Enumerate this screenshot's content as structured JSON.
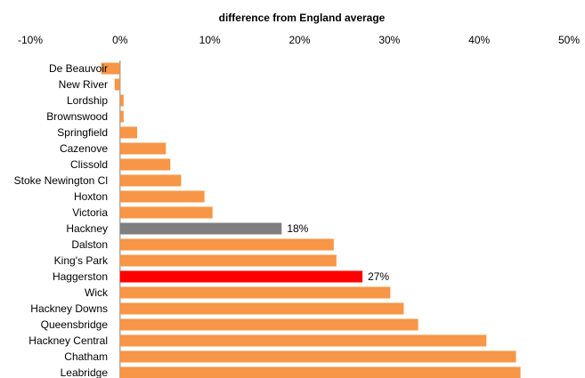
{
  "chart_data": {
    "type": "bar",
    "orientation": "horizontal",
    "title": "difference from England  average",
    "xlim": [
      -0.1,
      0.5
    ],
    "x_ticks": [
      -0.1,
      0,
      0.1,
      0.2,
      0.3,
      0.4,
      0.5
    ],
    "x_tick_labels": [
      "-10%",
      "0%",
      "10%",
      "20%",
      "30%",
      "40%",
      "50%"
    ],
    "axis_position": "top",
    "grid": false,
    "legend": "none",
    "categories": [
      "De Beauvoir",
      "New River",
      "Lordship",
      "Brownswood",
      "Springfield",
      "Cazenove",
      "Clissold",
      "Stoke Newington Cl",
      "Hoxton",
      "Victoria",
      "Hackney",
      "Dalston",
      "King's Park",
      "Haggerston",
      "Wick",
      "Hackney Downs",
      "Queensbridge",
      "Hackney Central",
      "Chatham",
      "Leabridge"
    ],
    "values": [
      -0.021,
      -0.006,
      0.004,
      0.004,
      0.019,
      0.051,
      0.056,
      0.068,
      0.094,
      0.103,
      0.18,
      0.238,
      0.241,
      0.27,
      0.301,
      0.316,
      0.332,
      0.408,
      0.441,
      0.446
    ],
    "data_labels": {
      "Hackney": "18%",
      "Haggerston": "27%"
    },
    "colors": {
      "default": "#F79646",
      "Hackney": "#7F7F7F",
      "Haggerston": "#FF0000"
    }
  }
}
